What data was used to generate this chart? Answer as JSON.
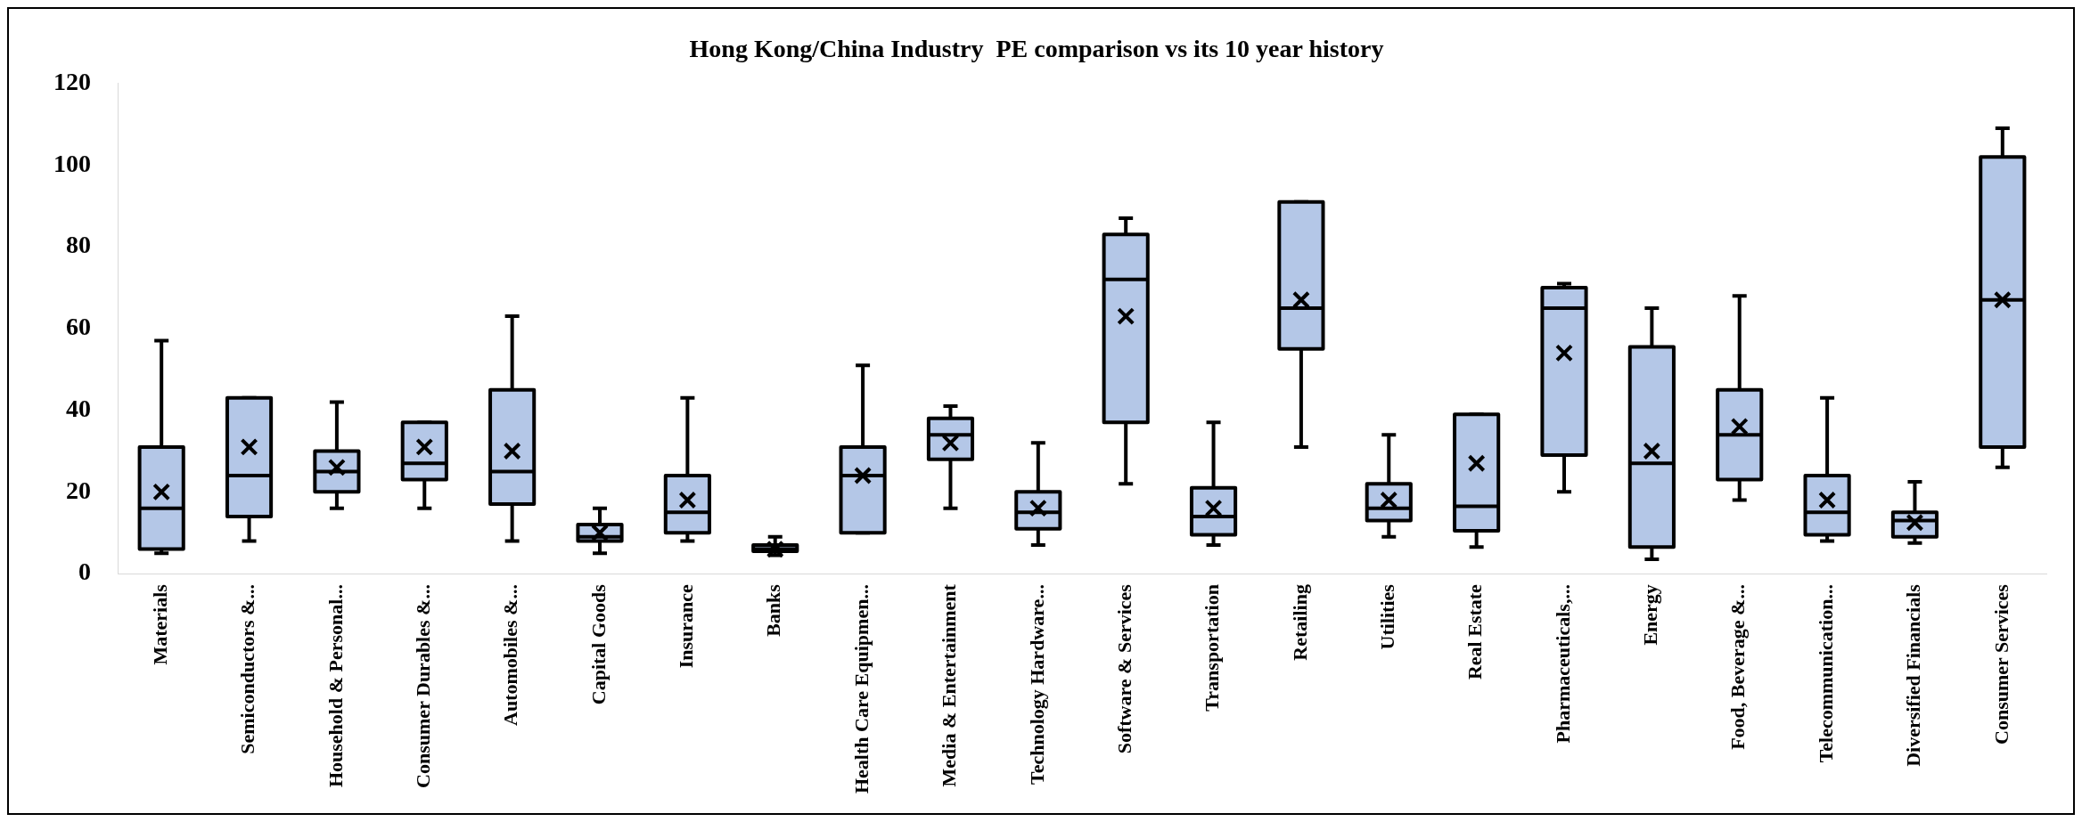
{
  "chart_data": {
    "type": "box",
    "title": "Hong Kong/China Industry  PE comparison vs its 10 year history",
    "categories": [
      "Materials",
      "Semiconductors &...",
      "Household & Personal...",
      "Consumer Durables &...",
      "Automobiles &...",
      "Capital Goods",
      "Insurance",
      "Banks",
      "Health Care Equipmen...",
      "Media & Entertainment",
      "Technology Hardware...",
      "Software & Services",
      "Transportation",
      "Retailing",
      "Utilities",
      "Real Estate",
      "Pharmaceuticals,...",
      "Energy",
      "Food, Beverage &...",
      "Telecommunication...",
      "Diversified Financials",
      "Consumer Services"
    ],
    "color": "#b4c7e7",
    "boxes": [
      {
        "low": 5,
        "q1": 6,
        "median": 16,
        "q3": 31,
        "high": 57,
        "mean": 20
      },
      {
        "low": 8,
        "q1": 14,
        "median": 24,
        "q3": 43,
        "high": 43,
        "mean": 31
      },
      {
        "low": 16,
        "q1": 20,
        "median": 25,
        "q3": 30,
        "high": 42,
        "mean": 26
      },
      {
        "low": 16,
        "q1": 23,
        "median": 27,
        "q3": 37,
        "high": 37,
        "mean": 31
      },
      {
        "low": 8,
        "q1": 17,
        "median": 25,
        "q3": 45,
        "high": 63,
        "mean": 30
      },
      {
        "low": 5,
        "q1": 8,
        "median": 9,
        "q3": 12,
        "high": 16,
        "mean": 10
      },
      {
        "low": 8,
        "q1": 10,
        "median": 15,
        "q3": 24,
        "high": 43,
        "mean": 18
      },
      {
        "low": 4.5,
        "q1": 5.5,
        "median": 6,
        "q3": 7,
        "high": 9,
        "mean": 6
      },
      {
        "low": 10,
        "q1": 10,
        "median": 24,
        "q3": 31,
        "high": 51,
        "mean": 24
      },
      {
        "low": 16,
        "q1": 28,
        "median": 34,
        "q3": 38,
        "high": 41,
        "mean": 32
      },
      {
        "low": 7,
        "q1": 11,
        "median": 15,
        "q3": 20,
        "high": 32,
        "mean": 16
      },
      {
        "low": 22,
        "q1": 37,
        "median": 72,
        "q3": 83,
        "high": 87,
        "mean": 63
      },
      {
        "low": 7,
        "q1": 9.5,
        "median": 14,
        "q3": 21,
        "high": 37,
        "mean": 16
      },
      {
        "low": 31,
        "q1": 55,
        "median": 65,
        "q3": 91,
        "high": 91,
        "mean": 67
      },
      {
        "low": 9,
        "q1": 13,
        "median": 16,
        "q3": 22,
        "high": 34,
        "mean": 18
      },
      {
        "low": 6.5,
        "q1": 10.5,
        "median": 16.5,
        "q3": 39,
        "high": 39,
        "mean": 27
      },
      {
        "low": 20,
        "q1": 29,
        "median": 65,
        "q3": 70,
        "high": 71,
        "mean": 54
      },
      {
        "low": 3.5,
        "q1": 6.5,
        "median": 27,
        "q3": 55.5,
        "high": 65,
        "mean": 30
      },
      {
        "low": 18,
        "q1": 23,
        "median": 34,
        "q3": 45,
        "high": 68,
        "mean": 36
      },
      {
        "low": 8,
        "q1": 9.5,
        "median": 15,
        "q3": 24,
        "high": 43,
        "mean": 18
      },
      {
        "low": 7.5,
        "q1": 9,
        "median": 13,
        "q3": 15,
        "high": 22.5,
        "mean": 12.5
      },
      {
        "low": 26,
        "q1": 31,
        "median": 67,
        "q3": 102,
        "high": 109,
        "mean": 67
      }
    ],
    "ylim": [
      0,
      120
    ],
    "yticks": [
      0,
      20,
      40,
      60,
      80,
      100,
      120
    ],
    "grid": false,
    "legend": false
  }
}
